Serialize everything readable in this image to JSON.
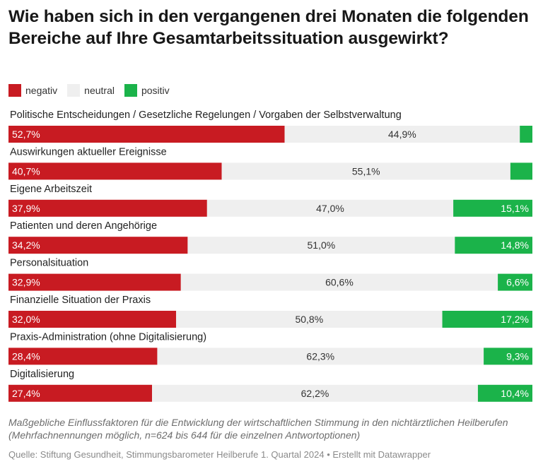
{
  "title": "Wie haben sich in den vergangenen drei Monaten die folgenden Bereiche auf Ihre Gesamtarbeitssituation ausgewirkt?",
  "legend": [
    {
      "label": "negativ",
      "color": "#c81b22"
    },
    {
      "label": "neutral",
      "color": "#efefef"
    },
    {
      "label": "positiv",
      "color": "#1bb34a"
    }
  ],
  "chart_data": {
    "type": "bar",
    "orientation": "horizontal",
    "stacked": true,
    "title": "Wie haben sich in den vergangenen drei Monaten die folgenden Bereiche auf Ihre Gesamtarbeitssituation ausgewirkt?",
    "categories": [
      "Politische Entscheidungen / Gesetzliche Regelungen / Vorgaben der Selbstverwaltung",
      "Auswirkungen aktueller Ereignisse",
      "Eigene Arbeitszeit",
      "Patienten und deren Angehörige",
      "Personalsituation",
      "Finanzielle Situation der Praxis",
      "Praxis-Administration (ohne Digitalisierung)",
      "Digitalisierung"
    ],
    "series": [
      {
        "name": "negativ",
        "color": "#c81b22",
        "values": [
          52.7,
          40.7,
          37.9,
          34.2,
          32.9,
          32.0,
          28.4,
          27.4
        ],
        "labels": [
          "52,7%",
          "40,7%",
          "37,9%",
          "34,2%",
          "32,9%",
          "32,0%",
          "28,4%",
          "27,4%"
        ]
      },
      {
        "name": "neutral",
        "color": "#efefef",
        "values": [
          44.9,
          55.1,
          47.0,
          51.0,
          60.6,
          50.8,
          62.3,
          62.2
        ],
        "labels": [
          "44,9%",
          "55,1%",
          "47,0%",
          "51,0%",
          "60,6%",
          "50,8%",
          "62,3%",
          "62,2%"
        ]
      },
      {
        "name": "positiv",
        "color": "#1bb34a",
        "values": [
          2.4,
          4.2,
          15.1,
          14.8,
          6.6,
          17.2,
          9.3,
          10.4
        ],
        "labels": [
          "",
          "",
          "15,1%",
          "14,8%",
          "6,6%",
          "17,2%",
          "9,3%",
          "10,4%"
        ]
      }
    ],
    "xlim": [
      0,
      100
    ],
    "legend_position": "top-left",
    "grid": false
  },
  "notes": "Maßgebliche Einflussfaktoren für die Entwicklung der wirtschaftlichen Stimmung in den nichtärztlichen Heilberufen (Mehrfachnennungen möglich, n=624 bis 644 für die einzelnen Antwortoptionen)",
  "source": "Quelle: Stiftung Gesundheit, Stimmungsbarometer Heilberufe 1. Quartal 2024 • Erstellt mit Datawrapper"
}
